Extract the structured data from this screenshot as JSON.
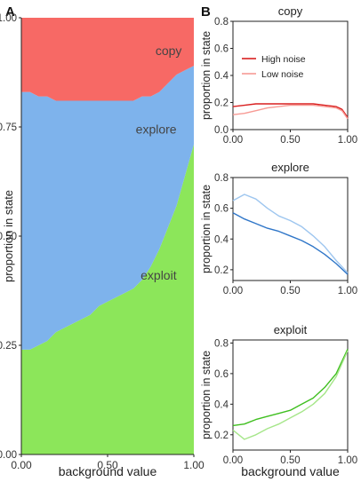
{
  "panels": {
    "a_label": "A",
    "b_label": "B"
  },
  "chart_data": [
    {
      "id": "A",
      "type": "area",
      "stacked": true,
      "xlabel": "background value",
      "ylabel": "proportion in state",
      "xlim": [
        0,
        1
      ],
      "ylim": [
        0,
        1
      ],
      "xticks": [
        "0.00",
        "0.50",
        "1.00"
      ],
      "yticks": [
        "0.00",
        "0.25",
        "0.50",
        "0.75",
        "1.00"
      ],
      "x": [
        0,
        0.05,
        0.1,
        0.15,
        0.2,
        0.25,
        0.3,
        0.35,
        0.4,
        0.45,
        0.5,
        0.55,
        0.6,
        0.65,
        0.7,
        0.75,
        0.8,
        0.85,
        0.9,
        0.95,
        1.0
      ],
      "series": [
        {
          "name": "exploit",
          "color": "#8ce65a",
          "values": [
            0.24,
            0.24,
            0.25,
            0.26,
            0.28,
            0.29,
            0.3,
            0.31,
            0.32,
            0.34,
            0.35,
            0.36,
            0.37,
            0.38,
            0.4,
            0.43,
            0.47,
            0.52,
            0.57,
            0.64,
            0.71
          ]
        },
        {
          "name": "explore",
          "color": "#7eb3ec",
          "values": [
            0.59,
            0.59,
            0.57,
            0.56,
            0.53,
            0.52,
            0.51,
            0.5,
            0.49,
            0.47,
            0.46,
            0.45,
            0.44,
            0.43,
            0.42,
            0.39,
            0.36,
            0.33,
            0.3,
            0.24,
            0.18
          ]
        },
        {
          "name": "copy",
          "color": "#f76965",
          "values": [
            0.17,
            0.17,
            0.18,
            0.18,
            0.19,
            0.19,
            0.19,
            0.19,
            0.19,
            0.19,
            0.19,
            0.19,
            0.19,
            0.19,
            0.18,
            0.18,
            0.17,
            0.15,
            0.13,
            0.12,
            0.11
          ]
        }
      ]
    },
    {
      "id": "B-copy",
      "type": "line",
      "title": "copy",
      "xlabel": "",
      "ylabel": "proportion in state",
      "xlim": [
        0,
        1
      ],
      "ylim": [
        0,
        0.8
      ],
      "xticks": [
        "0.00",
        "0.50",
        "1.00"
      ],
      "yticks": [
        "0.0",
        "0.2",
        "0.4",
        "0.6",
        "0.8"
      ],
      "legend": {
        "placement": "top-left",
        "entries": [
          "High noise",
          "Low noise"
        ]
      },
      "x": [
        0,
        0.1,
        0.2,
        0.3,
        0.4,
        0.5,
        0.6,
        0.7,
        0.8,
        0.9,
        0.95,
        1.0
      ],
      "series": [
        {
          "name": "High noise",
          "color": "#d91f1f",
          "values": [
            0.17,
            0.18,
            0.19,
            0.19,
            0.19,
            0.19,
            0.19,
            0.19,
            0.18,
            0.17,
            0.15,
            0.09
          ]
        },
        {
          "name": "Low noise",
          "color": "#f79a94",
          "values": [
            0.11,
            0.12,
            0.14,
            0.16,
            0.17,
            0.18,
            0.18,
            0.18,
            0.17,
            0.16,
            0.14,
            0.08
          ]
        }
      ]
    },
    {
      "id": "B-explore",
      "type": "line",
      "title": "explore",
      "xlabel": "",
      "ylabel": "proportion in state",
      "xlim": [
        0,
        1
      ],
      "ylim": [
        0.13,
        0.8
      ],
      "xticks": [
        "0.00",
        "0.50",
        "1.00"
      ],
      "yticks": [
        "0.2",
        "0.4",
        "0.6",
        "0.8"
      ],
      "x": [
        0,
        0.1,
        0.2,
        0.3,
        0.4,
        0.5,
        0.6,
        0.7,
        0.8,
        0.9,
        1.0
      ],
      "series": [
        {
          "name": "High noise",
          "color": "#2f76c8",
          "values": [
            0.57,
            0.53,
            0.5,
            0.47,
            0.45,
            0.42,
            0.39,
            0.35,
            0.3,
            0.24,
            0.17
          ]
        },
        {
          "name": "Low noise",
          "color": "#9ec6ef",
          "values": [
            0.65,
            0.69,
            0.66,
            0.6,
            0.55,
            0.52,
            0.48,
            0.42,
            0.35,
            0.26,
            0.18
          ]
        }
      ]
    },
    {
      "id": "B-exploit",
      "type": "line",
      "title": "exploit",
      "xlabel": "background value",
      "ylabel": "proportion in state",
      "xlim": [
        0,
        1
      ],
      "ylim": [
        0.1,
        0.82
      ],
      "xticks": [
        "0.00",
        "0.50",
        "1.00"
      ],
      "yticks": [
        "0.2",
        "0.4",
        "0.6",
        "0.8"
      ],
      "x": [
        0,
        0.1,
        0.2,
        0.3,
        0.4,
        0.5,
        0.6,
        0.7,
        0.8,
        0.9,
        1.0
      ],
      "series": [
        {
          "name": "High noise",
          "color": "#3fbf1f",
          "values": [
            0.26,
            0.27,
            0.3,
            0.32,
            0.34,
            0.36,
            0.4,
            0.44,
            0.51,
            0.6,
            0.76
          ]
        },
        {
          "name": "Low noise",
          "color": "#a6e68a",
          "values": [
            0.23,
            0.17,
            0.2,
            0.24,
            0.27,
            0.31,
            0.35,
            0.4,
            0.47,
            0.58,
            0.75
          ]
        }
      ]
    }
  ]
}
